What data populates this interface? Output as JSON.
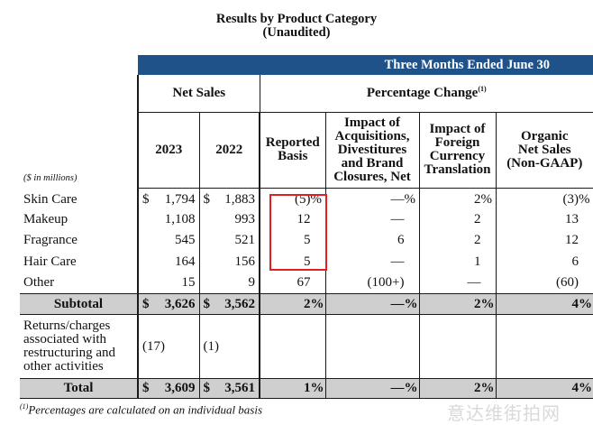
{
  "title_line1": "Results by Product Category",
  "title_line2": "(Unaudited)",
  "band_label": "Three Months Ended June 30",
  "net_sales_label": "Net Sales",
  "pct_change_label": "Percentage Change",
  "pct_change_footnote_mark": "(1)",
  "units_label": "($ in millions)",
  "columns": {
    "y2023": "2023",
    "y2022": "2022",
    "reported_l1": "Reported",
    "reported_l2": "Basis",
    "impact_l1": "Impact of",
    "impact_l2": "Acquisitions,",
    "impact_l3": "Divestitures",
    "impact_l4": "and Brand",
    "impact_l5": "Closures, Net",
    "fx_l1": "Impact of",
    "fx_l2": "Foreign",
    "fx_l3": "Currency",
    "fx_l4": "Translation",
    "org_l1": "Organic",
    "org_l2": "Net Sales",
    "org_l3": "(Non-GAAP)"
  },
  "rows": [
    {
      "label": "Skin Care",
      "y2023": "1,794",
      "y2022": "1,883",
      "reported": "(5)",
      "impact": "—",
      "fx": "2",
      "organic": "(3)"
    },
    {
      "label": "Makeup",
      "y2023": "1,108",
      "y2022": "993",
      "reported": "12",
      "impact": "—",
      "fx": "2",
      "organic": "13"
    },
    {
      "label": "Fragrance",
      "y2023": "545",
      "y2022": "521",
      "reported": "5",
      "impact": "6",
      "fx": "2",
      "organic": "12"
    },
    {
      "label": "Hair Care",
      "y2023": "164",
      "y2022": "156",
      "reported": "5",
      "impact": "—",
      "fx": "1",
      "organic": "6"
    },
    {
      "label": "Other",
      "y2023": "15",
      "y2022": "9",
      "reported": "67",
      "impact": "(100+)",
      "fx": "—",
      "organic": "(60)"
    }
  ],
  "subtotal": {
    "label": "Subtotal",
    "y2023": "3,626",
    "y2022": "3,562",
    "reported": "2",
    "impact": "—",
    "fx": "2",
    "organic": "4"
  },
  "returns": {
    "label": "Returns/charges associated with restructuring and other activities",
    "y2023": "(17)",
    "y2022": "(1)"
  },
  "total": {
    "label": "Total",
    "y2023": "3,609",
    "y2022": "3,561",
    "reported": "1",
    "impact": "—",
    "fx": "2",
    "organic": "4"
  },
  "dollar": "$",
  "percent": "%",
  "footnote_mark": "(1)",
  "footnote_text": "Percentages are calculated on an individual basis",
  "watermark": "意达维街拍网",
  "colors": {
    "band": "#1f5289",
    "subtotal_bg": "#cfcfcf",
    "highlight": "#e02020"
  }
}
